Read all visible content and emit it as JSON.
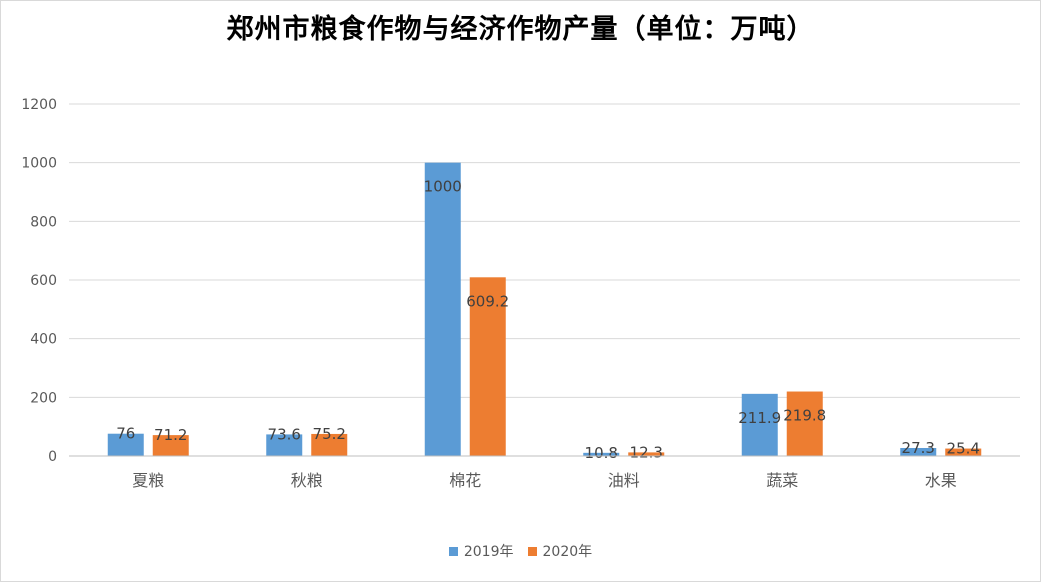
{
  "chart_data": {
    "type": "bar",
    "title": "郑州市粮食作物与经济作物产量（单位：万吨）",
    "categories": [
      "夏粮",
      "秋粮",
      "棉花",
      "油料",
      "蔬菜",
      "水果"
    ],
    "series": [
      {
        "name": "2019年",
        "color": "#5b9bd5",
        "values": [
          76,
          73.6,
          1000,
          10.8,
          211.9,
          27.3
        ]
      },
      {
        "name": "2020年",
        "color": "#ed7d31",
        "values": [
          71.2,
          75.2,
          609.2,
          12.3,
          219.8,
          25.4
        ]
      }
    ],
    "ylim": [
      0,
      1200
    ],
    "yticks": [
      0,
      200,
      400,
      600,
      800,
      1000,
      1200
    ],
    "grid": true,
    "legend_position": "bottom",
    "xlabel": "",
    "ylabel": ""
  }
}
